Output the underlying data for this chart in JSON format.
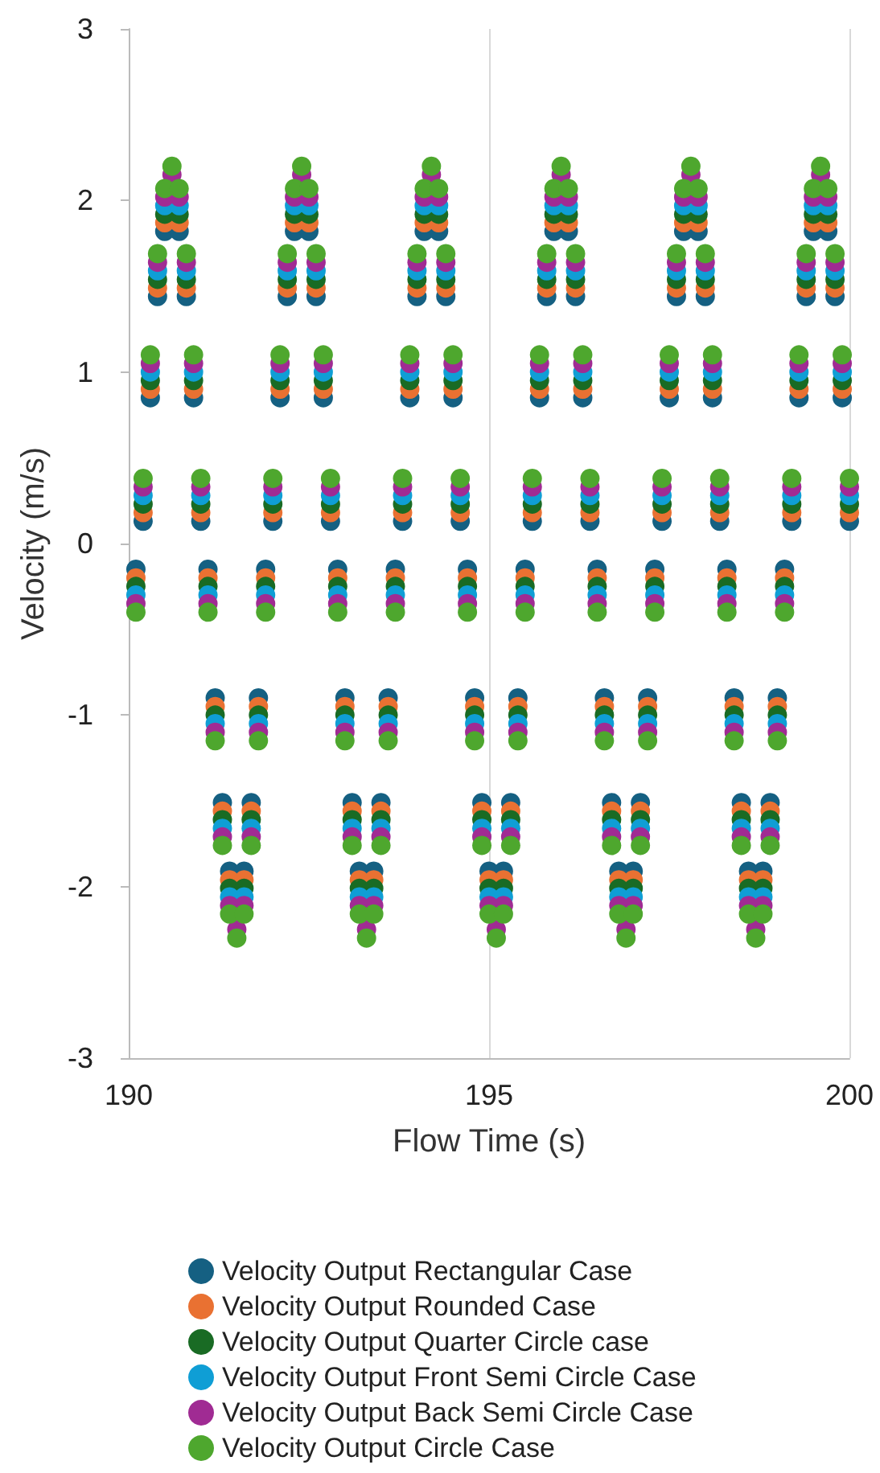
{
  "chart_data": {
    "type": "scatter",
    "xlabel": "Flow Time (s)",
    "ylabel": "Velocity (m/s)",
    "xlim": [
      190,
      200
    ],
    "xticks": [
      190,
      195,
      200
    ],
    "ylim": [
      -3,
      3
    ],
    "yticks": [
      -3,
      -2,
      -1,
      0,
      1,
      2,
      3
    ],
    "grid": "x",
    "legend": "bottom",
    "marker": "circle",
    "x": [
      190.1,
      190.2,
      190.3,
      190.4,
      190.5,
      190.6,
      190.7,
      190.8,
      190.9,
      191.0,
      191.1,
      191.2,
      191.3,
      191.4,
      191.5,
      191.6,
      191.7,
      191.8,
      191.9,
      192.0,
      192.1,
      192.2,
      192.3,
      192.4,
      192.5,
      192.6,
      192.7,
      192.8,
      192.9,
      193.0,
      193.1,
      193.2,
      193.3,
      193.4,
      193.5,
      193.6,
      193.7,
      193.8,
      193.9,
      194.0,
      194.1,
      194.2,
      194.3,
      194.4,
      194.5,
      194.6,
      194.7,
      194.8,
      194.9,
      195.0,
      195.1,
      195.2,
      195.3,
      195.4,
      195.5,
      195.6,
      195.7,
      195.8,
      195.9,
      196.0,
      196.1,
      196.2,
      196.3,
      196.4,
      196.5,
      196.6,
      196.7,
      196.8,
      196.9,
      197.0,
      197.1,
      197.2,
      197.3,
      197.4,
      197.5,
      197.6,
      197.7,
      197.8,
      197.9,
      198.0,
      198.1,
      198.2,
      198.3,
      198.4,
      198.5,
      198.6,
      198.7,
      198.8,
      198.9,
      199.0,
      199.1,
      199.2,
      199.3,
      199.4,
      199.5,
      199.6,
      199.7,
      199.8,
      199.9,
      200.0
    ],
    "series": [
      {
        "name": "Velocity Output Rectangular Case",
        "color": "#156082",
        "values": [
          -0.15,
          0.13,
          0.85,
          1.44,
          1.82,
          null,
          1.82,
          1.44,
          0.85,
          0.13,
          -0.15,
          -0.9,
          -1.51,
          -1.91,
          null,
          -1.91,
          -1.51,
          -0.9,
          -0.15,
          0.13,
          0.85,
          1.44,
          1.82,
          null,
          1.82,
          1.44,
          0.85,
          0.13,
          -0.15,
          -0.9,
          -1.51,
          -1.91,
          null,
          -1.91,
          -1.51,
          -0.9,
          -0.15,
          0.13,
          0.85,
          1.44,
          1.82,
          null,
          1.82,
          1.44,
          0.85,
          0.13,
          -0.15,
          -0.9,
          -1.51,
          -1.91,
          null,
          -1.91,
          -1.51,
          -0.9,
          -0.15,
          0.13,
          0.85,
          1.44,
          1.82,
          null,
          1.82,
          1.44,
          0.85,
          0.13,
          -0.15,
          -0.9,
          -1.51,
          -1.91,
          null,
          -1.91,
          -1.51,
          -0.9,
          -0.15,
          0.13,
          0.85,
          1.44,
          1.82,
          null,
          1.82,
          1.44,
          0.85,
          0.13,
          -0.15,
          -0.9,
          -1.51,
          -1.91,
          null,
          -1.91,
          -1.51,
          -0.9,
          -0.15,
          0.13,
          0.85,
          1.44,
          1.82,
          null,
          1.82,
          1.44,
          0.85,
          0.13
        ]
      },
      {
        "name": "Velocity Output Rounded Case",
        "color": "#e97132",
        "values": [
          -0.2,
          0.18,
          0.9,
          1.49,
          1.87,
          null,
          1.87,
          1.49,
          0.9,
          0.18,
          -0.2,
          -0.95,
          -1.56,
          -1.96,
          null,
          -1.96,
          -1.56,
          -0.95,
          -0.2,
          0.18,
          0.9,
          1.49,
          1.87,
          null,
          1.87,
          1.49,
          0.9,
          0.18,
          -0.2,
          -0.95,
          -1.56,
          -1.96,
          null,
          -1.96,
          -1.56,
          -0.95,
          -0.2,
          0.18,
          0.9,
          1.49,
          1.87,
          null,
          1.87,
          1.49,
          0.9,
          0.18,
          -0.2,
          -0.95,
          -1.56,
          -1.96,
          null,
          -1.96,
          -1.56,
          -0.95,
          -0.2,
          0.18,
          0.9,
          1.49,
          1.87,
          null,
          1.87,
          1.49,
          0.9,
          0.18,
          -0.2,
          -0.95,
          -1.56,
          -1.96,
          null,
          -1.96,
          -1.56,
          -0.95,
          -0.2,
          0.18,
          0.9,
          1.49,
          1.87,
          null,
          1.87,
          1.49,
          0.9,
          0.18,
          -0.2,
          -0.95,
          -1.56,
          -1.96,
          null,
          -1.96,
          -1.56,
          -0.95,
          -0.2,
          0.18,
          0.9,
          1.49,
          1.87,
          null,
          1.87,
          1.49,
          0.9,
          0.18
        ]
      },
      {
        "name": "Velocity Output Quarter Circle case",
        "color": "#196b24",
        "values": [
          -0.25,
          0.23,
          0.95,
          1.54,
          1.92,
          null,
          1.92,
          1.54,
          0.95,
          0.23,
          -0.25,
          -1.0,
          -1.61,
          -2.01,
          null,
          -2.01,
          -1.61,
          -1.0,
          -0.25,
          0.23,
          0.95,
          1.54,
          1.92,
          null,
          1.92,
          1.54,
          0.95,
          0.23,
          -0.25,
          -1.0,
          -1.61,
          -2.01,
          null,
          -2.01,
          -1.61,
          -1.0,
          -0.25,
          0.23,
          0.95,
          1.54,
          1.92,
          null,
          1.92,
          1.54,
          0.95,
          0.23,
          -0.25,
          -1.0,
          -1.61,
          -2.01,
          null,
          -2.01,
          -1.61,
          -1.0,
          -0.25,
          0.23,
          0.95,
          1.54,
          1.92,
          null,
          1.92,
          1.54,
          0.95,
          0.23,
          -0.25,
          -1.0,
          -1.61,
          -2.01,
          null,
          -2.01,
          -1.61,
          -1.0,
          -0.25,
          0.23,
          0.95,
          1.54,
          1.92,
          null,
          1.92,
          1.54,
          0.95,
          0.23,
          -0.25,
          -1.0,
          -1.61,
          -2.01,
          null,
          -2.01,
          -1.61,
          -1.0,
          -0.25,
          0.23,
          0.95,
          1.54,
          1.92,
          null,
          1.92,
          1.54,
          0.95,
          0.23
        ]
      },
      {
        "name": "Velocity Output Front Semi Circle Case",
        "color": "#0f9ed5",
        "values": [
          -0.3,
          0.28,
          1.0,
          1.59,
          1.97,
          null,
          1.97,
          1.59,
          1.0,
          0.28,
          -0.3,
          -1.05,
          -1.66,
          -2.06,
          null,
          -2.06,
          -1.66,
          -1.05,
          -0.3,
          0.28,
          1.0,
          1.59,
          1.97,
          null,
          1.97,
          1.59,
          1.0,
          0.28,
          -0.3,
          -1.05,
          -1.66,
          -2.06,
          null,
          -2.06,
          -1.66,
          -1.05,
          -0.3,
          0.28,
          1.0,
          1.59,
          1.97,
          null,
          1.97,
          1.59,
          1.0,
          0.28,
          -0.3,
          -1.05,
          -1.66,
          -2.06,
          null,
          -2.06,
          -1.66,
          -1.05,
          -0.3,
          0.28,
          1.0,
          1.59,
          1.97,
          null,
          1.97,
          1.59,
          1.0,
          0.28,
          -0.3,
          -1.05,
          -1.66,
          -2.06,
          null,
          -2.06,
          -1.66,
          -1.05,
          -0.3,
          0.28,
          1.0,
          1.59,
          1.97,
          null,
          1.97,
          1.59,
          1.0,
          0.28,
          -0.3,
          -1.05,
          -1.66,
          -2.06,
          null,
          -2.06,
          -1.66,
          -1.05,
          -0.3,
          0.28,
          1.0,
          1.59,
          1.97,
          null,
          1.97,
          1.59,
          1.0,
          0.28
        ]
      },
      {
        "name": "Velocity Output Back Semi Circle Case",
        "color": "#a02b93",
        "values": [
          -0.35,
          0.33,
          1.05,
          1.64,
          2.02,
          2.15,
          2.02,
          1.64,
          1.05,
          0.33,
          -0.35,
          -1.1,
          -1.71,
          -2.11,
          -2.25,
          -2.11,
          -1.71,
          -1.1,
          -0.35,
          0.33,
          1.05,
          1.64,
          2.02,
          2.15,
          2.02,
          1.64,
          1.05,
          0.33,
          -0.35,
          -1.1,
          -1.71,
          -2.11,
          -2.25,
          -2.11,
          -1.71,
          -1.1,
          -0.35,
          0.33,
          1.05,
          1.64,
          2.02,
          2.15,
          2.02,
          1.64,
          1.05,
          0.33,
          -0.35,
          -1.1,
          -1.71,
          -2.11,
          -2.25,
          -2.11,
          -1.71,
          -1.1,
          -0.35,
          0.33,
          1.05,
          1.64,
          2.02,
          2.15,
          2.02,
          1.64,
          1.05,
          0.33,
          -0.35,
          -1.1,
          -1.71,
          -2.11,
          -2.25,
          -2.11,
          -1.71,
          -1.1,
          -0.35,
          0.33,
          1.05,
          1.64,
          2.02,
          2.15,
          2.02,
          1.64,
          1.05,
          0.33,
          -0.35,
          -1.1,
          -1.71,
          -2.11,
          -2.25,
          -2.11,
          -1.71,
          -1.1,
          -0.35,
          0.33,
          1.05,
          1.64,
          2.02,
          2.15,
          2.02,
          1.64,
          1.05,
          0.33
        ]
      },
      {
        "name": "Velocity Output Circle Case",
        "color": "#4ea72e",
        "values": [
          -0.4,
          0.38,
          1.1,
          1.69,
          2.07,
          2.2,
          2.07,
          1.69,
          1.1,
          0.38,
          -0.4,
          -1.15,
          -1.76,
          -2.16,
          -2.3,
          -2.16,
          -1.76,
          -1.15,
          -0.4,
          0.38,
          1.1,
          1.69,
          2.07,
          2.2,
          2.07,
          1.69,
          1.1,
          0.38,
          -0.4,
          -1.15,
          -1.76,
          -2.16,
          -2.3,
          -2.16,
          -1.76,
          -1.15,
          -0.4,
          0.38,
          1.1,
          1.69,
          2.07,
          2.2,
          2.07,
          1.69,
          1.1,
          0.38,
          -0.4,
          -1.15,
          -1.76,
          -2.16,
          -2.3,
          -2.16,
          -1.76,
          -1.15,
          -0.4,
          0.38,
          1.1,
          1.69,
          2.07,
          2.2,
          2.07,
          1.69,
          1.1,
          0.38,
          -0.4,
          -1.15,
          -1.76,
          -2.16,
          -2.3,
          -2.16,
          -1.76,
          -1.15,
          -0.4,
          0.38,
          1.1,
          1.69,
          2.07,
          2.2,
          2.07,
          1.69,
          1.1,
          0.38,
          -0.4,
          -1.15,
          -1.76,
          -2.16,
          -2.3,
          -2.16,
          -1.76,
          -1.15,
          -0.4,
          0.38,
          1.1,
          1.69,
          2.07,
          2.2,
          2.07,
          1.69,
          1.1,
          0.38
        ]
      }
    ]
  }
}
